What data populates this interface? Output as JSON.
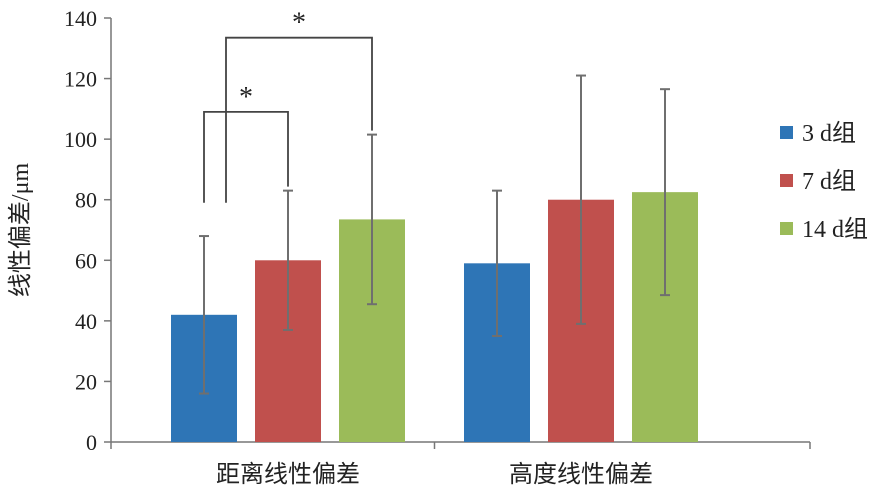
{
  "chart_data": {
    "type": "bar",
    "title": "",
    "xlabel": "",
    "ylabel": "线性偏差/μm",
    "ylim": [
      0,
      140
    ],
    "yticks": [
      0,
      20,
      40,
      60,
      80,
      100,
      120,
      140
    ],
    "categories": [
      "距离线性偏差",
      "高度线性偏差"
    ],
    "series": [
      {
        "name": "3 d组",
        "color": "#2e75b6",
        "values": [
          42,
          59
        ],
        "errors": [
          26,
          24
        ]
      },
      {
        "name": "7 d组",
        "color": "#c0504d",
        "values": [
          60,
          80
        ],
        "errors": [
          23,
          41
        ]
      },
      {
        "name": "14 d组",
        "color": "#9bbb59",
        "values": [
          73.5,
          82.5
        ],
        "errors": [
          28,
          34
        ]
      }
    ],
    "legend": {
      "position": "right"
    },
    "grid": false,
    "annotations": [
      {
        "label": "*",
        "category": "距离线性偏差",
        "from_series": "3 d组",
        "to_series": "7 d组",
        "y_value": 109
      },
      {
        "label": "*",
        "category": "距离线性偏差",
        "from_series": "3 d组",
        "to_series": "14 d组",
        "y_value": 133.5
      }
    ]
  }
}
